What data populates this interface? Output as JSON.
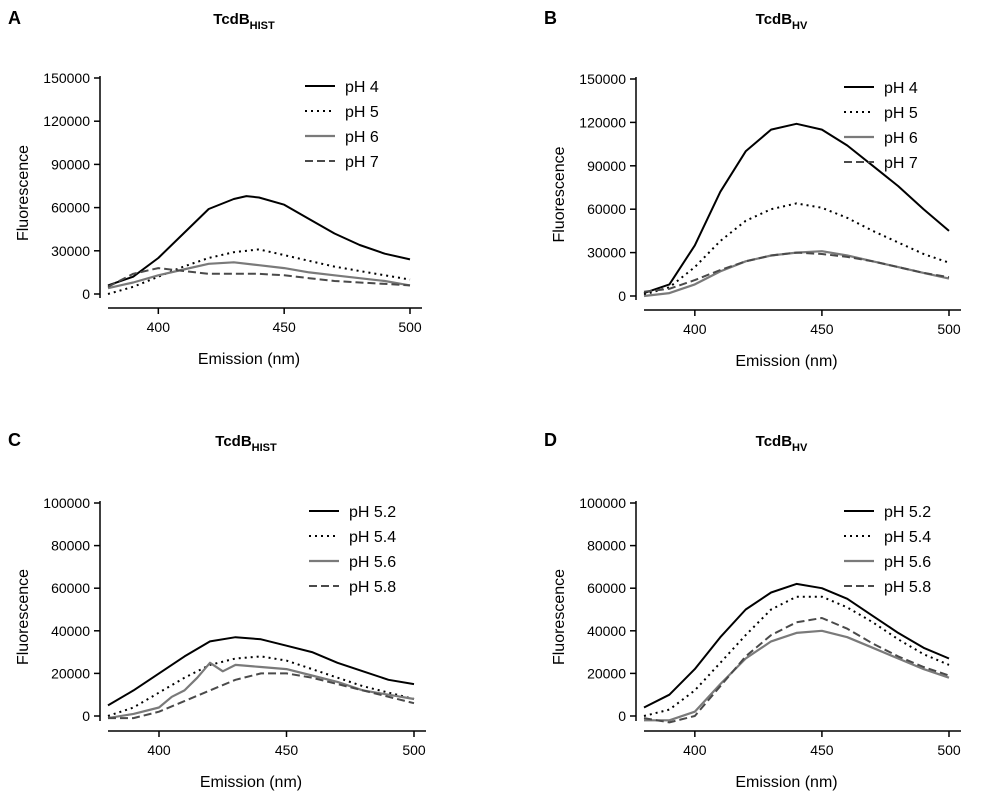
{
  "figure": {
    "styles": {
      "solid-black": {
        "color": "#000000",
        "dash": "",
        "width": 2
      },
      "dotted-black": {
        "color": "#000000",
        "dash": "2,4",
        "width": 2
      },
      "solid-gray": {
        "color": "#7a7a7a",
        "dash": "",
        "width": 2.2
      },
      "dashed-gray": {
        "color": "#4a4a4a",
        "dash": "8,4",
        "width": 2
      }
    }
  },
  "chart_data": [
    {
      "panel": "A",
      "type": "line",
      "title_main": "TcdB",
      "title_sub": "HIST",
      "xlabel": "Emission (nm)",
      "ylabel": "Fluorescence",
      "xlim": [
        380,
        500
      ],
      "ylim": [
        0,
        150000
      ],
      "xticks": [
        "400",
        "450",
        "500"
      ],
      "yticks": [
        "0",
        "30000",
        "60000",
        "90000",
        "120000",
        "150000"
      ],
      "legend_position": "top-right",
      "series": [
        {
          "name": "pH 4",
          "style": "solid-black",
          "x": [
            380,
            390,
            400,
            410,
            420,
            430,
            435,
            440,
            450,
            460,
            470,
            480,
            490,
            500
          ],
          "y": [
            6000,
            12000,
            25000,
            42000,
            59000,
            66000,
            68000,
            67000,
            62000,
            52000,
            42000,
            34000,
            28000,
            24000
          ]
        },
        {
          "name": "pH 5",
          "style": "dotted-black",
          "x": [
            380,
            390,
            400,
            410,
            420,
            430,
            440,
            450,
            460,
            470,
            480,
            490,
            500
          ],
          "y": [
            0,
            5000,
            12000,
            19000,
            25000,
            29000,
            31000,
            27000,
            23000,
            19000,
            16000,
            13000,
            10000
          ]
        },
        {
          "name": "pH 6",
          "style": "solid-gray",
          "x": [
            380,
            390,
            400,
            410,
            420,
            430,
            440,
            450,
            460,
            470,
            480,
            490,
            500
          ],
          "y": [
            4000,
            8000,
            13000,
            17000,
            21000,
            22000,
            20000,
            18000,
            15000,
            13000,
            11000,
            9000,
            6000
          ]
        },
        {
          "name": "pH 7",
          "style": "dashed-gray",
          "x": [
            380,
            390,
            400,
            410,
            420,
            430,
            440,
            450,
            460,
            470,
            480,
            490,
            500
          ],
          "y": [
            5000,
            14000,
            18000,
            16000,
            14000,
            14000,
            14000,
            13000,
            11000,
            9000,
            8000,
            7000,
            6000
          ]
        }
      ]
    },
    {
      "panel": "B",
      "type": "line",
      "title_main": "TcdB",
      "title_sub": "HV",
      "xlabel": "Emission (nm)",
      "ylabel": "Fluorescence",
      "xlim": [
        380,
        500
      ],
      "ylim": [
        0,
        150000
      ],
      "xticks": [
        "400",
        "450",
        "500"
      ],
      "yticks": [
        "0",
        "30000",
        "60000",
        "90000",
        "120000",
        "150000"
      ],
      "legend_position": "top-right",
      "series": [
        {
          "name": "pH 4",
          "style": "solid-black",
          "x": [
            380,
            390,
            400,
            410,
            420,
            430,
            440,
            450,
            460,
            470,
            480,
            490,
            500
          ],
          "y": [
            2000,
            8000,
            35000,
            72000,
            100000,
            115000,
            119000,
            115000,
            104000,
            90000,
            76000,
            60000,
            45000
          ]
        },
        {
          "name": "pH 5",
          "style": "dotted-black",
          "x": [
            380,
            390,
            400,
            410,
            420,
            430,
            440,
            450,
            460,
            470,
            480,
            490,
            500
          ],
          "y": [
            1000,
            6000,
            20000,
            38000,
            52000,
            60000,
            64000,
            61000,
            54000,
            45000,
            37000,
            29000,
            23000
          ]
        },
        {
          "name": "pH 6",
          "style": "solid-gray",
          "x": [
            380,
            390,
            400,
            410,
            420,
            430,
            440,
            450,
            460,
            470,
            480,
            490,
            500
          ],
          "y": [
            0,
            2000,
            8000,
            17000,
            24000,
            28000,
            30000,
            31000,
            28000,
            24000,
            20000,
            16000,
            12000
          ]
        },
        {
          "name": "pH 7",
          "style": "dashed-gray",
          "x": [
            380,
            390,
            400,
            410,
            420,
            430,
            440,
            450,
            460,
            470,
            480,
            490,
            500
          ],
          "y": [
            3000,
            5000,
            11000,
            18000,
            24000,
            28000,
            30000,
            29000,
            27000,
            24000,
            20000,
            16000,
            13000
          ]
        }
      ]
    },
    {
      "panel": "C",
      "type": "line",
      "title_main": "TcdB",
      "title_sub": "HIST",
      "xlabel": "Emission (nm)",
      "ylabel": "Fluorescence",
      "xlim": [
        380,
        500
      ],
      "ylim": [
        0,
        100000
      ],
      "xticks": [
        "400",
        "450",
        "500"
      ],
      "yticks": [
        "0",
        "20000",
        "40000",
        "60000",
        "80000",
        "100000"
      ],
      "legend_position": "top-right",
      "series": [
        {
          "name": "pH 5.2",
          "style": "solid-black",
          "x": [
            380,
            390,
            400,
            410,
            420,
            430,
            440,
            450,
            460,
            470,
            480,
            490,
            500
          ],
          "y": [
            5000,
            12000,
            20000,
            28000,
            35000,
            37000,
            36000,
            33000,
            30000,
            25000,
            21000,
            17000,
            15000
          ]
        },
        {
          "name": "pH 5.4",
          "style": "dotted-black",
          "x": [
            380,
            390,
            400,
            410,
            420,
            430,
            440,
            450,
            460,
            470,
            480,
            490,
            500
          ],
          "y": [
            0,
            4000,
            11000,
            18000,
            24000,
            27000,
            28000,
            26000,
            22000,
            18000,
            14000,
            11000,
            8000
          ]
        },
        {
          "name": "pH 5.6",
          "style": "solid-gray",
          "x": [
            380,
            390,
            400,
            405,
            410,
            415,
            420,
            425,
            430,
            440,
            450,
            460,
            470,
            480,
            490,
            500
          ],
          "y": [
            -1000,
            1000,
            4000,
            9000,
            12000,
            18000,
            25000,
            21000,
            24000,
            23000,
            22000,
            19000,
            16000,
            12000,
            10000,
            8000
          ]
        },
        {
          "name": "pH 5.8",
          "style": "dashed-gray",
          "x": [
            380,
            390,
            400,
            410,
            420,
            430,
            440,
            450,
            460,
            470,
            480,
            490,
            500
          ],
          "y": [
            -1000,
            -1000,
            2000,
            7000,
            12000,
            17000,
            20000,
            20000,
            18000,
            15000,
            12000,
            9000,
            6000
          ]
        }
      ]
    },
    {
      "panel": "D",
      "type": "line",
      "title_main": "TcdB",
      "title_sub": "HV",
      "xlabel": "Emission (nm)",
      "ylabel": "Fluorescence",
      "xlim": [
        380,
        500
      ],
      "ylim": [
        0,
        100000
      ],
      "xticks": [
        "400",
        "450",
        "500"
      ],
      "yticks": [
        "0",
        "20000",
        "40000",
        "60000",
        "80000",
        "100000"
      ],
      "legend_position": "top-right",
      "series": [
        {
          "name": "pH 5.2",
          "style": "solid-black",
          "x": [
            380,
            390,
            400,
            410,
            420,
            430,
            440,
            450,
            460,
            470,
            480,
            490,
            500
          ],
          "y": [
            4000,
            10000,
            22000,
            37000,
            50000,
            58000,
            62000,
            60000,
            55000,
            47000,
            39000,
            32000,
            27000
          ]
        },
        {
          "name": "pH 5.4",
          "style": "dotted-black",
          "x": [
            380,
            390,
            400,
            410,
            420,
            430,
            440,
            450,
            460,
            470,
            480,
            490,
            500
          ],
          "y": [
            0,
            3000,
            12000,
            25000,
            38000,
            50000,
            56000,
            56000,
            51000,
            44000,
            36000,
            29000,
            24000
          ]
        },
        {
          "name": "pH 5.6",
          "style": "solid-gray",
          "x": [
            380,
            390,
            400,
            410,
            420,
            430,
            440,
            450,
            460,
            470,
            480,
            490,
            500
          ],
          "y": [
            -2000,
            -2000,
            2000,
            15000,
            27000,
            35000,
            39000,
            40000,
            37000,
            32000,
            27000,
            22000,
            18000
          ]
        },
        {
          "name": "pH 5.8",
          "style": "dashed-gray",
          "x": [
            380,
            390,
            400,
            410,
            420,
            430,
            440,
            450,
            460,
            470,
            480,
            490,
            500
          ],
          "y": [
            -1000,
            -3000,
            0,
            14000,
            28000,
            38000,
            44000,
            46000,
            41000,
            34000,
            28000,
            23000,
            19000
          ]
        }
      ]
    }
  ]
}
